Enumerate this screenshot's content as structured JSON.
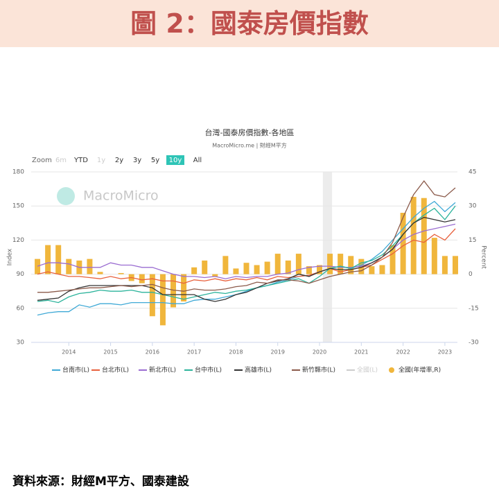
{
  "header": {
    "title": "圖 2：國泰房價指數"
  },
  "footer": "資料來源：財經M平方、國泰建設",
  "chart_data": {
    "type": "line-bar",
    "title": "台灣-國泰房價指數-各地區",
    "subtitle": "MacroMicro.me | 財經M平方",
    "watermark": "MacroMicro",
    "zoom": {
      "label": "Zoom",
      "options": [
        "6m",
        "YTD",
        "1y",
        "2y",
        "3y",
        "5y",
        "10y",
        "All"
      ],
      "disabled": [
        0,
        2
      ],
      "active": 6
    },
    "ylabel": "Index",
    "y2label": "Percent",
    "xlim": [
      2013.1,
      2023.3
    ],
    "xticks": [
      2014,
      2015,
      2016,
      2017,
      2018,
      2019,
      2020,
      2021,
      2022,
      2023
    ],
    "ylim": [
      30,
      180
    ],
    "yticks": [
      30,
      60,
      90,
      120,
      150,
      180
    ],
    "y2lim": [
      -30,
      45
    ],
    "y2ticks": [
      -30,
      -15,
      0,
      15,
      30,
      45
    ],
    "highlight_x": [
      2020.08,
      2020.3
    ],
    "grid": true,
    "x": [
      2013.25,
      2013.5,
      2013.75,
      2014,
      2014.25,
      2014.5,
      2014.75,
      2015,
      2015.25,
      2015.5,
      2015.75,
      2016,
      2016.25,
      2016.5,
      2016.75,
      2017,
      2017.25,
      2017.5,
      2017.75,
      2018,
      2018.25,
      2018.5,
      2018.75,
      2019,
      2019.25,
      2019.5,
      2019.75,
      2020,
      2020.25,
      2020.5,
      2020.75,
      2021,
      2021.25,
      2021.5,
      2021.75,
      2022,
      2022.25,
      2022.5,
      2022.75,
      2023,
      2023.25
    ],
    "series": [
      {
        "name": "台南市(L)",
        "color": "#3fa9d6",
        "type": "line",
        "values": [
          54,
          56,
          57,
          57,
          63,
          61,
          64,
          64,
          63,
          65,
          65,
          65,
          65,
          64,
          64,
          67,
          68,
          68,
          70,
          72,
          75,
          78,
          80,
          83,
          85,
          88,
          89,
          92,
          95,
          97,
          95,
          98,
          103,
          110,
          120,
          130,
          140,
          148,
          154,
          145,
          153
        ]
      },
      {
        "name": "台北市(L)",
        "color": "#e8603c",
        "type": "line",
        "values": [
          90,
          92,
          90,
          88,
          88,
          87,
          86,
          88,
          86,
          87,
          85,
          86,
          84,
          84,
          82,
          85,
          84,
          86,
          84,
          86,
          85,
          87,
          85,
          88,
          87,
          88,
          89,
          92,
          95,
          92,
          94,
          96,
          98,
          103,
          108,
          115,
          120,
          118,
          125,
          120,
          130
        ]
      },
      {
        "name": "新北市(L)",
        "color": "#9a6cd1",
        "type": "line",
        "values": [
          97,
          100,
          100,
          99,
          96,
          96,
          96,
          100,
          98,
          98,
          96,
          96,
          93,
          90,
          88,
          88,
          87,
          88,
          86,
          88,
          87,
          88,
          88,
          90,
          91,
          94,
          96,
          97,
          97,
          96,
          96,
          97,
          100,
          105,
          112,
          120,
          125,
          128,
          130,
          132,
          134
        ]
      },
      {
        "name": "台中市(L)",
        "color": "#2bb39b",
        "type": "line",
        "values": [
          66,
          67,
          65,
          70,
          73,
          74,
          76,
          75,
          75,
          76,
          74,
          74,
          72,
          70,
          68,
          70,
          72,
          74,
          73,
          75,
          76,
          78,
          80,
          82,
          84,
          86,
          82,
          88,
          95,
          97,
          95,
          100,
          102,
          107,
          115,
          125,
          135,
          142,
          148,
          138,
          150
        ]
      },
      {
        "name": "高雄市(L)",
        "color": "#333333",
        "type": "line",
        "values": [
          67,
          68,
          69,
          75,
          78,
          80,
          80,
          80,
          80,
          80,
          80,
          78,
          72,
          72,
          72,
          72,
          68,
          66,
          68,
          72,
          74,
          78,
          82,
          84,
          86,
          90,
          88,
          92,
          95,
          94,
          94,
          96,
          100,
          105,
          112,
          125,
          135,
          140,
          138,
          136,
          138
        ]
      },
      {
        "name": "新竹縣市(L)",
        "color": "#8b5a4a",
        "type": "line",
        "values": [
          74,
          74,
          75,
          76,
          77,
          78,
          78,
          79,
          80,
          79,
          80,
          81,
          78,
          76,
          75,
          77,
          76,
          76,
          77,
          79,
          80,
          83,
          82,
          85,
          85,
          84,
          82,
          85,
          88,
          90,
          92,
          93,
          98,
          105,
          118,
          140,
          160,
          172,
          160,
          158,
          166
        ]
      },
      {
        "name": "全國(L)",
        "color": "#cccccc",
        "type": "line",
        "visible": false
      },
      {
        "name": "全國(年增率,R)",
        "color": "#f0b63c",
        "type": "bar",
        "axis": "y2",
        "values": [
          6.7,
          12.8,
          12.8,
          6.7,
          6,
          6.7,
          1,
          0,
          0.5,
          -3,
          -4,
          -18.5,
          -22.5,
          -14.6,
          -12,
          3,
          6,
          -1,
          8,
          2.5,
          5,
          4,
          5.5,
          9,
          6,
          9,
          3.5,
          4,
          9,
          9,
          8,
          6.7,
          3.5,
          4,
          12.8,
          27,
          34,
          33.5,
          16,
          8,
          8
        ]
      }
    ]
  }
}
